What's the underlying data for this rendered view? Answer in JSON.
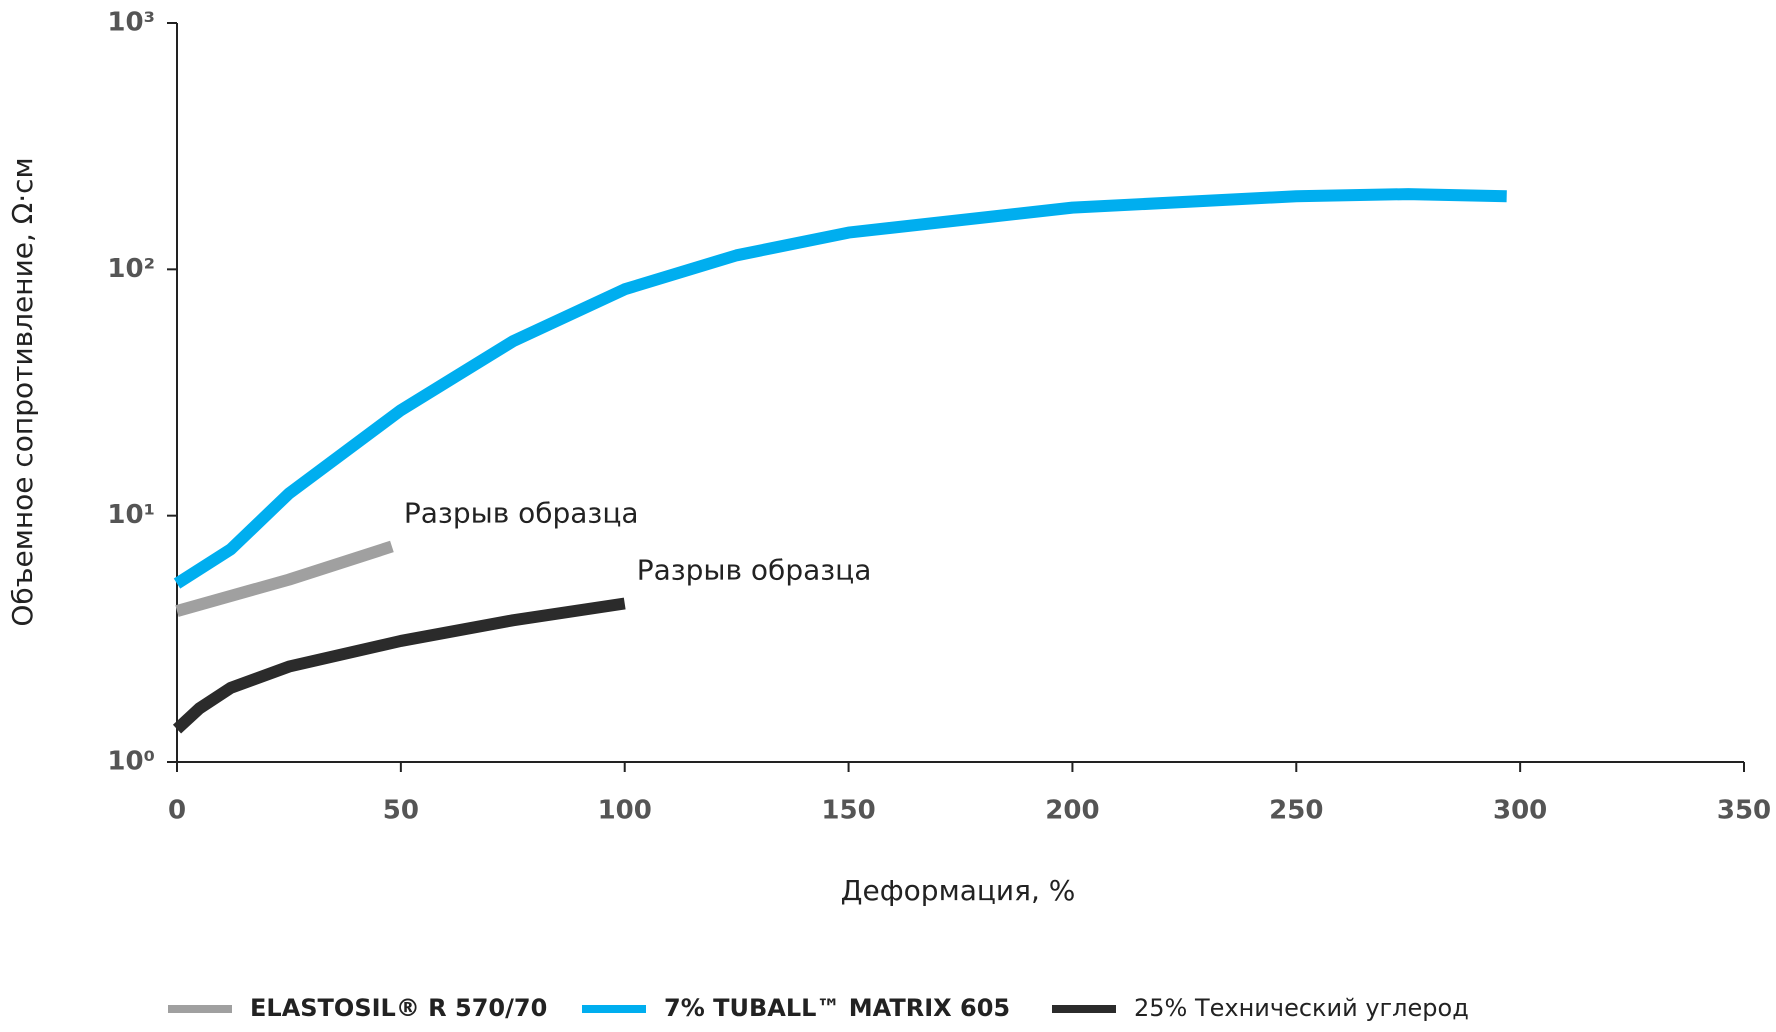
{
  "chart_data": {
    "type": "line",
    "xlabel": "Деформация, %",
    "ylabel": "Объемное сопротивление, Ω·см",
    "xlim": [
      0,
      350
    ],
    "xticks": [
      0,
      50,
      100,
      150,
      200,
      250,
      300,
      350
    ],
    "ylim": [
      1,
      1000
    ],
    "yscale": "log",
    "yticks": [
      {
        "value": 1,
        "label": "10⁰"
      },
      {
        "value": 10,
        "label": "10¹"
      },
      {
        "value": 100,
        "label": "10²"
      },
      {
        "value": 1000,
        "label": "10³"
      }
    ],
    "legend": "bottom",
    "series": [
      {
        "name": "ELASTOSIL® R 570/70",
        "color": "#a0a0a0",
        "x": [
          0,
          25,
          48
        ],
        "values": [
          4.1,
          5.5,
          7.5
        ]
      },
      {
        "name": "7% TUBALL™  MATRIX 605",
        "color": "#00aeef",
        "x": [
          0,
          12,
          25,
          50,
          75,
          100,
          125,
          150,
          200,
          250,
          275,
          297
        ],
        "values": [
          5.3,
          7.3,
          12.3,
          26.8,
          51,
          83,
          114,
          141,
          178,
          198,
          202,
          198
        ]
      },
      {
        "name": "25% Технический углерод",
        "color": "#2b2b2b",
        "x": [
          0,
          5,
          12,
          25,
          50,
          75,
          100
        ],
        "values": [
          1.36,
          1.65,
          2.0,
          2.44,
          3.1,
          3.76,
          4.4
        ]
      }
    ],
    "annotations": [
      "Разрыв образца",
      "Разрыв образца"
    ]
  }
}
